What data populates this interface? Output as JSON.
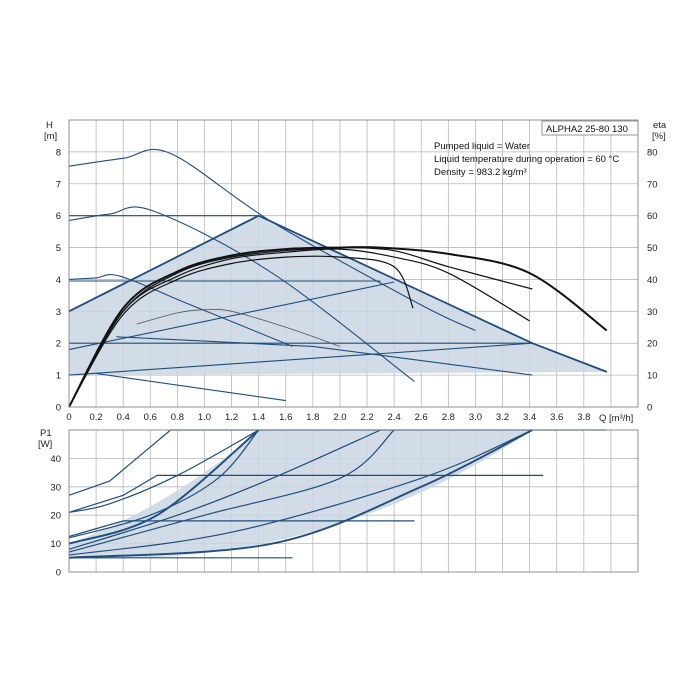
{
  "chart_data": [
    {
      "type": "line",
      "title": "ALPHA2 25-80 130",
      "notes": [
        "Pumped liquid = Water",
        "Liquid temperature during operation = 60 °C",
        "Density = 983.2 kg/m³"
      ],
      "xlabel": "Q [m³/h]",
      "ylabel_line1": "H",
      "ylabel_line2": "[m]",
      "y2label_line1": "eta",
      "y2label_line2": "[%]",
      "xlim": [
        0,
        4.2
      ],
      "ylim": [
        0,
        9
      ],
      "y2lim": [
        0,
        90
      ],
      "x_ticks": [
        "0",
        "0.2",
        "0.4",
        "0.6",
        "0.8",
        "1.0",
        "1.2",
        "1.4",
        "1.6",
        "1.8",
        "2.0",
        "2.2",
        "2.4",
        "2.6",
        "2.8",
        "3.0",
        "3.2",
        "3.4",
        "3.6",
        "3.8"
      ],
      "y_ticks": [
        "0",
        "1",
        "2",
        "3",
        "4",
        "5",
        "6",
        "7",
        "8"
      ],
      "y2_ticks": [
        "0",
        "10",
        "20",
        "30",
        "40",
        "50",
        "60",
        "70",
        "80"
      ],
      "grid": true,
      "colors": {
        "curve": "#1f4e7d",
        "area": "#c9d6e3",
        "efficiency": "#111111"
      },
      "operating_area": [
        [
          0,
          3
        ],
        [
          1.4,
          6
        ],
        [
          3.42,
          2
        ],
        [
          3.97,
          1.1
        ],
        [
          0,
          1
        ]
      ],
      "series": [
        {
          "values": [
            [
              0,
              7.55
            ],
            [
              0.4,
              7.8
            ],
            [
              0.75,
              7.95
            ],
            [
              1.5,
              5.8
            ],
            [
              2.6,
              3.2
            ],
            [
              3.0,
              2.4
            ]
          ]
        },
        {
          "values": [
            [
              0,
              5.85
            ],
            [
              0.3,
              6.05
            ],
            [
              0.62,
              6.15
            ],
            [
              1.5,
              4.2
            ],
            [
              2.55,
              0.8
            ]
          ]
        },
        {
          "values": [
            [
              0,
              4.0
            ],
            [
              0.2,
              4.05
            ],
            [
              0.38,
              4.1
            ],
            [
              0.9,
              3.2
            ],
            [
              1.65,
              1.9
            ]
          ]
        },
        {
          "values": [
            [
              0,
              6.0
            ],
            [
              1.4,
              6.0
            ]
          ]
        },
        {
          "values": [
            [
              0,
              3.95
            ],
            [
              2.3,
              3.95
            ]
          ]
        },
        {
          "values": [
            [
              0,
              2.0
            ],
            [
              3.42,
              2.0
            ]
          ]
        },
        {
          "values": [
            [
              0,
              1.8
            ],
            [
              2.4,
              3.92
            ]
          ]
        },
        {
          "values": [
            [
              0,
              1.0
            ],
            [
              3.42,
              2.0
            ]
          ]
        },
        {
          "values": [
            [
              0.2,
              1.05
            ],
            [
              1.6,
              0.2
            ]
          ]
        },
        {
          "values": [
            [
              0,
              3.0
            ],
            [
              1.4,
              6.0
            ],
            [
              3.42,
              2.0
            ],
            [
              3.97,
              1.1
            ]
          ]
        },
        {
          "values": [
            [
              0.35,
              2.2
            ],
            [
              1.8,
              1.9
            ],
            [
              3.42,
              1.0
            ]
          ]
        }
      ],
      "efficiency_curves": [
        [
          [
            0,
            0
          ],
          [
            0.4,
            29
          ],
          [
            0.8,
            40
          ],
          [
            1.2,
            45
          ],
          [
            1.6,
            47
          ],
          [
            2.0,
            47
          ],
          [
            2.4,
            44
          ],
          [
            2.54,
            31
          ]
        ],
        [
          [
            0,
            0
          ],
          [
            0.4,
            30
          ],
          [
            0.8,
            41
          ],
          [
            1.2,
            46.5
          ],
          [
            1.6,
            48.5
          ],
          [
            2.0,
            49.5
          ],
          [
            2.4,
            47
          ],
          [
            2.8,
            42
          ],
          [
            3.4,
            27
          ]
        ],
        [
          [
            0,
            0
          ],
          [
            0.4,
            30
          ],
          [
            0.8,
            42
          ],
          [
            1.2,
            47
          ],
          [
            1.6,
            49
          ],
          [
            2.0,
            50
          ],
          [
            2.4,
            49
          ],
          [
            2.8,
            44
          ],
          [
            3.42,
            37
          ]
        ],
        [
          [
            0,
            0
          ],
          [
            0.4,
            31
          ],
          [
            0.8,
            42.5
          ],
          [
            1.2,
            47.5
          ],
          [
            1.6,
            49.5
          ],
          [
            2.0,
            50
          ],
          [
            2.3,
            50
          ],
          [
            2.8,
            48
          ],
          [
            3.4,
            42
          ],
          [
            3.97,
            24
          ]
        ],
        [
          [
            0.5,
            26
          ],
          [
            0.8,
            29.5
          ],
          [
            1.0,
            30.5
          ],
          [
            1.2,
            30
          ],
          [
            1.6,
            25
          ],
          [
            2.0,
            19
          ]
        ]
      ]
    },
    {
      "type": "line",
      "ylabel_line1": "P1",
      "ylabel_line2": "[W]",
      "xlim": [
        0,
        4.2
      ],
      "ylim": [
        0,
        50
      ],
      "y_ticks": [
        "0",
        "10",
        "20",
        "30",
        "40"
      ],
      "grid": true,
      "operating_area": [
        [
          0,
          10
        ],
        [
          0.65,
          20
        ],
        [
          1.4,
          50
        ],
        [
          3.42,
          50
        ],
        [
          1.8,
          18
        ],
        [
          0.2,
          5.5
        ],
        [
          0,
          5
        ]
      ],
      "series": [
        {
          "values": [
            [
              0,
              27
            ],
            [
              0.3,
              32
            ],
            [
              0.75,
              50
            ],
            [
              3.97,
              50
            ]
          ]
        },
        {
          "values": [
            [
              0,
              21
            ],
            [
              0.4,
              27
            ],
            [
              0.65,
              34
            ],
            [
              3.5,
              34
            ]
          ]
        },
        {
          "values": [
            [
              0,
              12.5
            ],
            [
              0.4,
              18
            ],
            [
              2.55,
              18
            ]
          ]
        },
        {
          "values": [
            [
              0,
              21
            ],
            [
              0.3,
              24
            ],
            [
              0.8,
              34
            ],
            [
              1.4,
              50
            ]
          ]
        },
        {
          "values": [
            [
              0,
              12
            ],
            [
              0.6,
              20
            ],
            [
              1.1,
              33
            ],
            [
              1.4,
              50
            ]
          ]
        },
        {
          "values": [
            [
              0,
              10
            ],
            [
              0.65,
              20
            ],
            [
              1.4,
              50
            ]
          ]
        },
        {
          "values": [
            [
              0,
              8
            ],
            [
              0.8,
              20
            ],
            [
              1.5,
              33
            ],
            [
              2.3,
              50
            ]
          ]
        },
        {
          "values": [
            [
              0,
              7
            ],
            [
              1.0,
              20
            ],
            [
              2.0,
              33
            ],
            [
              2.4,
              50
            ]
          ]
        },
        {
          "values": [
            [
              0,
              6
            ],
            [
              1.2,
              14
            ],
            [
              2.6,
              33
            ],
            [
              3.42,
              50
            ]
          ]
        },
        {
          "values": [
            [
              0,
              5
            ],
            [
              1.5,
              10
            ],
            [
              2.6,
              30
            ],
            [
              3.42,
              50
            ]
          ]
        },
        {
          "values": [
            [
              0,
              5
            ],
            [
              1.65,
              5
            ]
          ]
        }
      ]
    }
  ]
}
